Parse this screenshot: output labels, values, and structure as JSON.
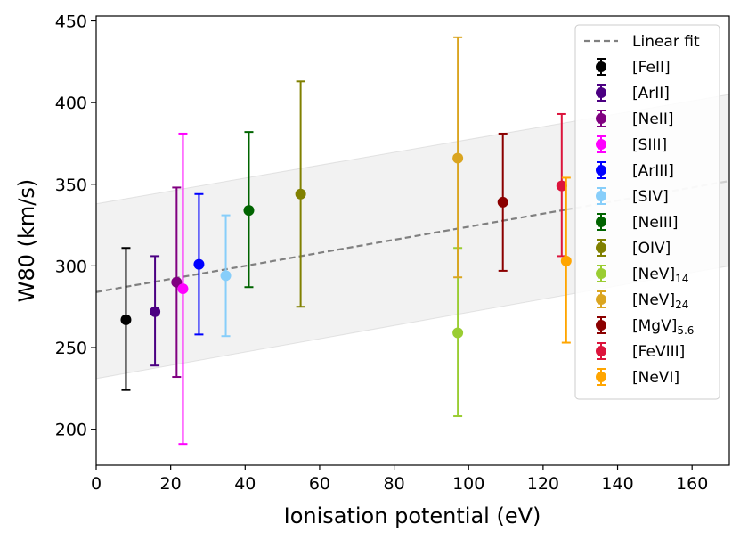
{
  "chart_data": {
    "type": "scatter",
    "title": "",
    "xlabel": "Ionisation potential (eV)",
    "ylabel": "W80 (km/s)",
    "xlim": [
      0,
      170
    ],
    "ylim": [
      178,
      453
    ],
    "xticks": [
      0,
      20,
      40,
      60,
      80,
      100,
      120,
      140,
      160
    ],
    "yticks": [
      200,
      250,
      300,
      350,
      400,
      450
    ],
    "grid": false,
    "legend_position": "top-right",
    "fit": {
      "name": "Linear fit",
      "color": "#808080",
      "line": {
        "x": [
          0,
          170
        ],
        "y": [
          284,
          352
        ]
      },
      "band_upper": {
        "x": [
          0,
          170
        ],
        "y": [
          338,
          405
        ]
      },
      "band_lower": {
        "x": [
          0,
          170
        ],
        "y": [
          231,
          300
        ]
      }
    },
    "series": [
      {
        "name": "[FeII]",
        "main": "[FeII]",
        "sub": "",
        "color": "#000000",
        "x": 8,
        "y": 267,
        "yerr_low": 224,
        "yerr_high": 311
      },
      {
        "name": "[ArII]",
        "main": "[ArII]",
        "sub": "",
        "color": "#4b0082",
        "x": 15.8,
        "y": 272,
        "yerr_low": 239,
        "yerr_high": 306
      },
      {
        "name": "[NeII]",
        "main": "[NeII]",
        "sub": "",
        "color": "#800080",
        "x": 21.6,
        "y": 290,
        "yerr_low": 232,
        "yerr_high": 348
      },
      {
        "name": "[SIII]",
        "main": "[SIII]",
        "sub": "",
        "color": "#ff00ff",
        "x": 23.3,
        "y": 286,
        "yerr_low": 191,
        "yerr_high": 381
      },
      {
        "name": "[ArIII]",
        "main": "[ArIII]",
        "sub": "",
        "color": "#0000ff",
        "x": 27.6,
        "y": 301,
        "yerr_low": 258,
        "yerr_high": 344
      },
      {
        "name": "[SIV]",
        "main": "[SIV]",
        "sub": "",
        "color": "#87cefa",
        "x": 34.8,
        "y": 294,
        "yerr_low": 257,
        "yerr_high": 331
      },
      {
        "name": "[NeIII]",
        "main": "[NeIII]",
        "sub": "",
        "color": "#006400",
        "x": 41,
        "y": 334,
        "yerr_low": 287,
        "yerr_high": 382
      },
      {
        "name": "[OIV]",
        "main": "[OIV]",
        "sub": "",
        "color": "#808000",
        "x": 54.9,
        "y": 344,
        "yerr_low": 275,
        "yerr_high": 413
      },
      {
        "name": "[NeV]14",
        "main": "[NeV]",
        "sub": "14",
        "color": "#9acd32",
        "x": 97.1,
        "y": 259,
        "yerr_low": 208,
        "yerr_high": 311
      },
      {
        "name": "[NeV]24",
        "main": "[NeV]",
        "sub": "24",
        "color": "#daa520",
        "x": 97.1,
        "y": 366,
        "yerr_low": 293,
        "yerr_high": 440
      },
      {
        "name": "[MgV]5.6",
        "main": "[MgV]",
        "sub": "5.6",
        "color": "#8b0000",
        "x": 109.2,
        "y": 339,
        "yerr_low": 297,
        "yerr_high": 381
      },
      {
        "name": "[FeVIII]",
        "main": "[FeVIII]",
        "sub": "",
        "color": "#dc143c",
        "x": 125,
        "y": 349,
        "yerr_low": 306,
        "yerr_high": 393
      },
      {
        "name": "[NeVI]",
        "main": "[NeVI]",
        "sub": "",
        "color": "#ffa500",
        "x": 126.2,
        "y": 303,
        "yerr_low": 253,
        "yerr_high": 354
      }
    ]
  }
}
